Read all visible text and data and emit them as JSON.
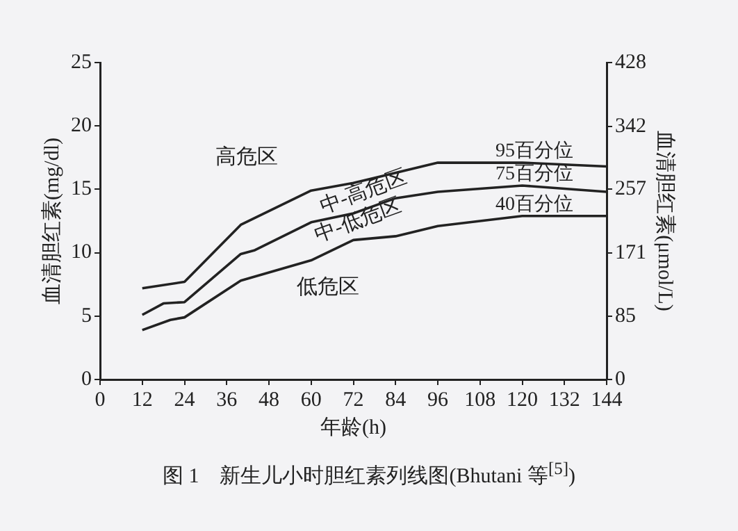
{
  "chart_data": {
    "type": "line",
    "title": "图 1　新生儿小时胆红素列线图(Bhutani 等$^{[5]}$)",
    "xlabel": "年龄(h)",
    "ylabel": "血清胆红素(mg/dl)",
    "y2label": "血清胆红素(μmol/L)",
    "xlim": [
      0,
      144
    ],
    "xticks": [
      0,
      12,
      24,
      36,
      48,
      60,
      72,
      84,
      96,
      108,
      120,
      132,
      144
    ],
    "ylim": [
      0,
      25
    ],
    "yticks": [
      0,
      5,
      10,
      15,
      20,
      25
    ],
    "y2lim": [
      0,
      428
    ],
    "y2ticks": [
      0,
      85,
      171,
      257,
      342,
      428
    ],
    "grid": false,
    "legend": false,
    "marker": "none",
    "line_style": "solid",
    "series": [
      {
        "name": "95百分位",
        "color": "#222222",
        "x": [
          12,
          24,
          40,
          60,
          72,
          96,
          120,
          144
        ],
        "values": [
          7.2,
          7.7,
          12.2,
          14.9,
          15.5,
          17.1,
          17.1,
          16.8
        ]
      },
      {
        "name": "75百分位",
        "color": "#222222",
        "x": [
          12,
          18,
          24,
          40,
          44,
          60,
          72,
          84,
          96,
          120,
          144
        ],
        "values": [
          5.1,
          6.0,
          6.1,
          9.9,
          10.2,
          12.4,
          13.1,
          14.3,
          14.8,
          15.3,
          14.8
        ]
      },
      {
        "name": "40百分位",
        "color": "#222222",
        "x": [
          12,
          20,
          24,
          40,
          60,
          72,
          84,
          96,
          120,
          144
        ],
        "values": [
          3.9,
          4.7,
          4.9,
          7.8,
          9.4,
          11.0,
          11.3,
          12.1,
          12.9,
          12.9
        ]
      }
    ],
    "annotations": [
      "高危区",
      "中-高危区",
      "中-低危区",
      "低危区"
    ]
  }
}
